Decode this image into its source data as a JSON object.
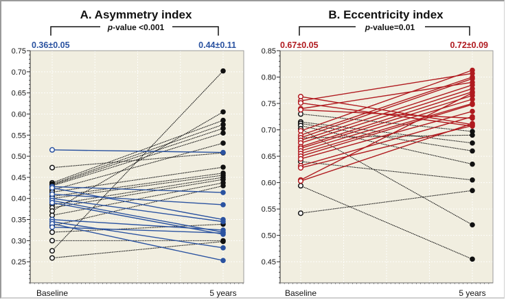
{
  "colors": {
    "plot_bg": "#f1eee0",
    "blue_series": "#2a52a0",
    "red_series": "#b01a1f",
    "black_series": "#111111",
    "grid": "#ffffff"
  },
  "chart_data": [
    {
      "type": "line",
      "subtype": "paired-slope",
      "title": "A. Asymmetry index",
      "pvalue_prefix": "p",
      "pvalue_text": "-value <0.001",
      "stat_baseline": "0.36±0.05",
      "stat_followup": "0.44±0.11",
      "categories": [
        "Baseline",
        "5 years"
      ],
      "xlabel": "",
      "ylabel": "",
      "ylim": [
        0.2,
        0.75
      ],
      "yticks": [
        "0.75",
        "0.70",
        "0.65",
        "0.60",
        "0.55",
        "0.50",
        "0.45",
        "0.40",
        "0.35",
        "0.30",
        "0.25"
      ],
      "grid": true,
      "series": [
        {
          "group": "blue",
          "values": [
            0.515,
            0.509
          ]
        },
        {
          "group": "blue",
          "values": [
            0.428,
            0.414
          ]
        },
        {
          "group": "blue",
          "values": [
            0.425,
            0.35
          ]
        },
        {
          "group": "blue",
          "values": [
            0.41,
            0.385
          ]
        },
        {
          "group": "blue",
          "values": [
            0.4,
            0.345
          ]
        },
        {
          "group": "blue",
          "values": [
            0.395,
            0.32
          ]
        },
        {
          "group": "blue",
          "values": [
            0.39,
            0.315
          ]
        },
        {
          "group": "blue",
          "values": [
            0.35,
            0.325
          ]
        },
        {
          "group": "blue",
          "values": [
            0.345,
            0.283
          ]
        },
        {
          "group": "blue",
          "values": [
            0.34,
            0.253
          ]
        },
        {
          "group": "blue",
          "values": [
            0.332,
            0.318
          ]
        },
        {
          "group": "black",
          "values": [
            0.473,
            0.508
          ]
        },
        {
          "group": "black",
          "values": [
            0.437,
            0.585
          ]
        },
        {
          "group": "black",
          "values": [
            0.434,
            0.575
          ]
        },
        {
          "group": "black",
          "values": [
            0.432,
            0.566
          ]
        },
        {
          "group": "black",
          "values": [
            0.43,
            0.555
          ]
        },
        {
          "group": "black",
          "values": [
            0.42,
            0.531
          ]
        },
        {
          "group": "black",
          "values": [
            0.415,
            0.474
          ]
        },
        {
          "group": "black",
          "values": [
            0.405,
            0.46
          ]
        },
        {
          "group": "black",
          "values": [
            0.4,
            0.455
          ]
        },
        {
          "group": "black",
          "values": [
            0.385,
            0.45
          ]
        },
        {
          "group": "black",
          "values": [
            0.378,
            0.445
          ]
        },
        {
          "group": "black",
          "values": [
            0.37,
            0.605
          ]
        },
        {
          "group": "black",
          "values": [
            0.36,
            0.437
          ]
        },
        {
          "group": "black",
          "values": [
            0.335,
            0.43
          ]
        },
        {
          "group": "black",
          "values": [
            0.32,
            0.339
          ]
        },
        {
          "group": "black",
          "values": [
            0.3,
            0.3
          ]
        },
        {
          "group": "black",
          "values": [
            0.276,
            0.702
          ]
        },
        {
          "group": "black",
          "values": [
            0.259,
            0.298
          ]
        }
      ]
    },
    {
      "type": "line",
      "subtype": "paired-slope",
      "title": "B. Eccentricity index",
      "pvalue_prefix": "p",
      "pvalue_text": "-value=0.01",
      "stat_baseline": "0.67±0.05",
      "stat_followup": "0.72±0.09",
      "categories": [
        "Baseline",
        "5 years"
      ],
      "xlabel": "",
      "ylabel": "",
      "ylim": [
        0.41,
        0.85
      ],
      "yticks": [
        "0.85",
        "0.80",
        "0.75",
        "0.70",
        "0.65",
        "0.60",
        "0.55",
        "0.50",
        "0.45"
      ],
      "grid": true,
      "series": [
        {
          "group": "red",
          "values": [
            0.763,
            0.71
          ]
        },
        {
          "group": "red",
          "values": [
            0.755,
            0.807
          ]
        },
        {
          "group": "red",
          "values": [
            0.751,
            0.707
          ]
        },
        {
          "group": "red",
          "values": [
            0.74,
            0.79
          ]
        },
        {
          "group": "red",
          "values": [
            0.738,
            0.722
          ]
        },
        {
          "group": "red",
          "values": [
            0.698,
            0.813
          ]
        },
        {
          "group": "red",
          "values": [
            0.69,
            0.8
          ]
        },
        {
          "group": "red",
          "values": [
            0.685,
            0.797
          ]
        },
        {
          "group": "red",
          "values": [
            0.68,
            0.785
          ]
        },
        {
          "group": "red",
          "values": [
            0.675,
            0.778
          ]
        },
        {
          "group": "red",
          "values": [
            0.668,
            0.772
          ]
        },
        {
          "group": "red",
          "values": [
            0.665,
            0.765
          ]
        },
        {
          "group": "red",
          "values": [
            0.66,
            0.758
          ]
        },
        {
          "group": "red",
          "values": [
            0.655,
            0.75
          ]
        },
        {
          "group": "red",
          "values": [
            0.65,
            0.748
          ]
        },
        {
          "group": "red",
          "values": [
            0.645,
            0.735
          ]
        },
        {
          "group": "red",
          "values": [
            0.632,
            0.725
          ]
        },
        {
          "group": "red",
          "values": [
            0.628,
            0.708
          ]
        },
        {
          "group": "red",
          "values": [
            0.605,
            0.77
          ]
        },
        {
          "group": "red",
          "values": [
            0.603,
            0.712
          ]
        },
        {
          "group": "black",
          "values": [
            0.73,
            0.697
          ]
        },
        {
          "group": "black",
          "values": [
            0.715,
            0.675
          ]
        },
        {
          "group": "black",
          "values": [
            0.712,
            0.66
          ]
        },
        {
          "group": "black",
          "values": [
            0.708,
            0.635
          ]
        },
        {
          "group": "black",
          "values": [
            0.702,
            0.52
          ]
        },
        {
          "group": "black",
          "values": [
            0.685,
            0.69
          ]
        },
        {
          "group": "black",
          "values": [
            0.64,
            0.605
          ]
        },
        {
          "group": "black",
          "values": [
            0.594,
            0.455
          ]
        },
        {
          "group": "black",
          "values": [
            0.542,
            0.585
          ]
        }
      ]
    }
  ]
}
